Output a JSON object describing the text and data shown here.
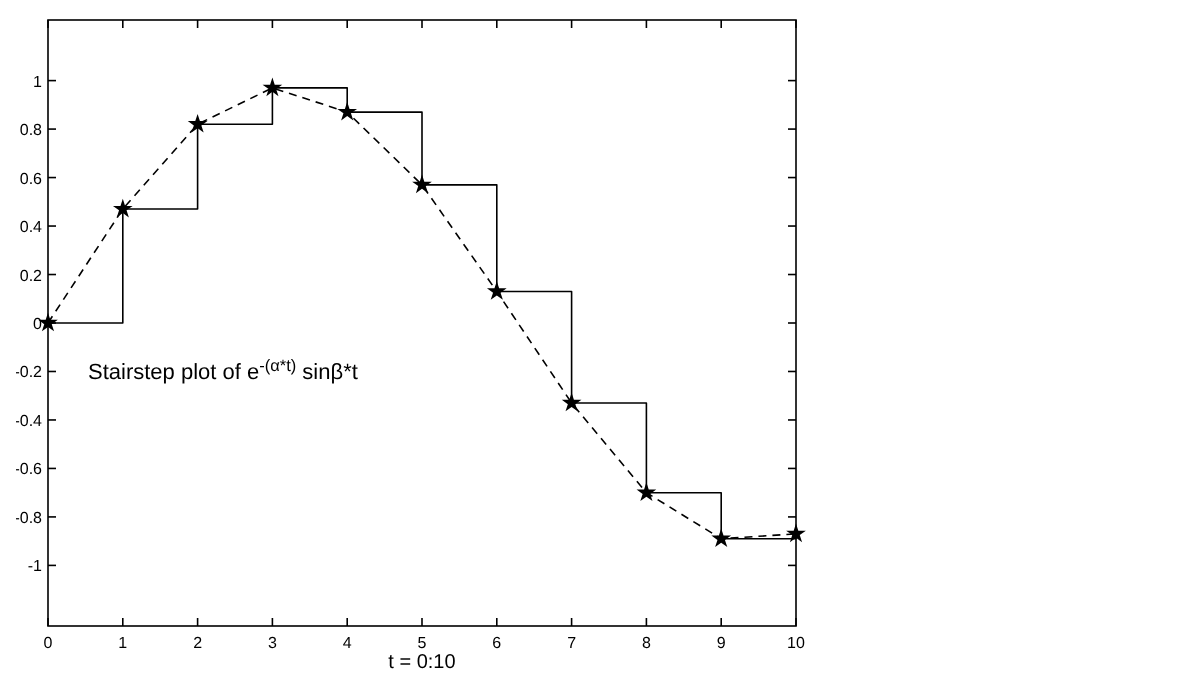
{
  "chart_data": {
    "type": "line",
    "xlabel": "t = 0:10",
    "x": [
      0,
      1,
      2,
      3,
      4,
      5,
      6,
      7,
      8,
      9,
      10
    ],
    "xlim": [
      0,
      10
    ],
    "xticks": [
      0,
      1,
      2,
      3,
      4,
      5,
      6,
      7,
      8,
      9,
      10
    ],
    "ylim": [
      -1.25,
      1.25
    ],
    "yticks": [
      -1,
      -0.8,
      -0.6,
      -0.4,
      -0.2,
      0,
      0.2,
      0.4,
      0.6,
      0.8,
      1
    ],
    "annotations": [
      "Stairstep plot of e$^{-(α*t)}$ sinβ*t"
    ],
    "series": [
      {
        "color": "#000000",
        "line_style": "dashed",
        "marker": "star",
        "values": [
          0,
          0.47,
          0.82,
          0.97,
          0.87,
          0.57,
          0.13,
          -0.33,
          -0.7,
          -0.89,
          -0.87
        ]
      },
      {
        "type": "step",
        "color": "#000000",
        "line_style": "solid",
        "values": [
          0,
          0.47,
          0.82,
          0.97,
          0.87,
          0.57,
          0.13,
          -0.33,
          -0.7,
          -0.89,
          -0.87
        ]
      }
    ]
  }
}
